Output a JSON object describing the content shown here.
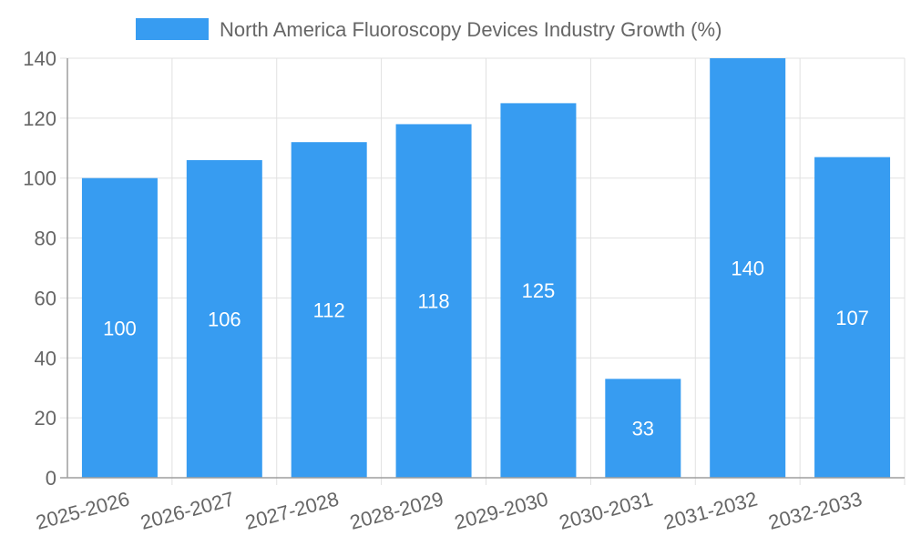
{
  "chart_data": {
    "type": "bar",
    "categories": [
      "2025-2026",
      "2026-2027",
      "2027-2028",
      "2028-2029",
      "2029-2030",
      "2030-2031",
      "2031-2032",
      "2032-2033"
    ],
    "series": [
      {
        "name": "North America Fluoroscopy Devices Industry Growth (%)",
        "values": [
          100,
          106,
          112,
          118,
          125,
          33,
          140,
          107
        ]
      }
    ],
    "title": "",
    "xlabel": "",
    "ylabel": "",
    "ylim": [
      0,
      140
    ],
    "yticks": [
      0,
      20,
      40,
      60,
      80,
      100,
      120,
      140
    ],
    "grid": true,
    "legend_position": "top",
    "data_labels": true,
    "colors": {
      "bar": "#379cf1",
      "grid": "#e1e1e1",
      "axis": "#9e9e9e",
      "text": "#666666",
      "data_label": "#ffffff"
    }
  }
}
